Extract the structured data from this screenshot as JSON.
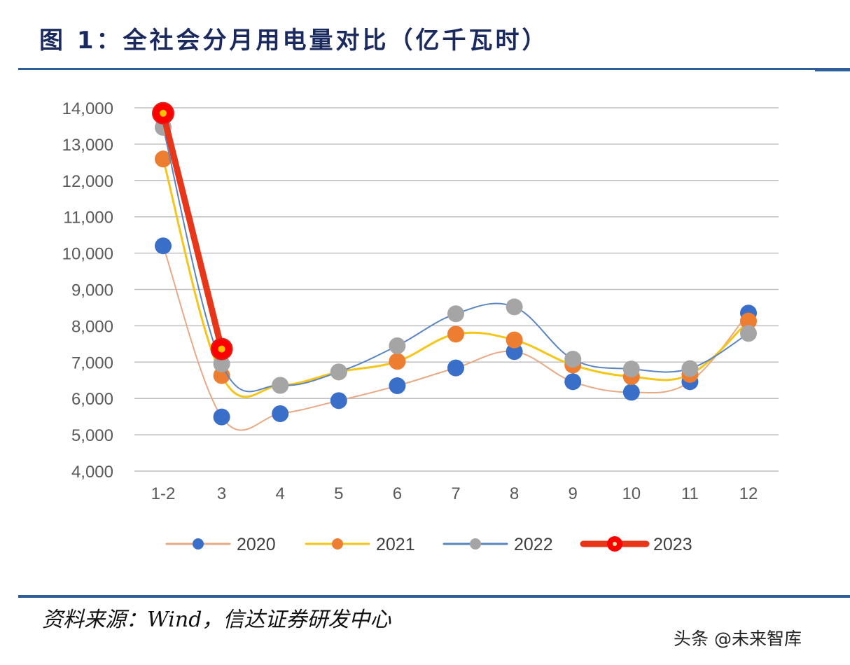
{
  "header": {
    "title": "图 1：全社会分月用电量对比（亿千瓦时）"
  },
  "footer": {
    "source": "资料来源：Wind，信达证券研发中心",
    "watermark": "头条 @未来智库"
  },
  "colors": {
    "rule": "#2f5f9a",
    "title": "#1a2a5e",
    "grid": "#bfbfc4",
    "axis_text": "#595959"
  },
  "chart_data": {
    "type": "line",
    "title": "全社会分月用电量对比（亿千瓦时）",
    "xlabel": "",
    "ylabel": "",
    "ylim": [
      4000,
      14000
    ],
    "yticks": [
      "4,000",
      "5,000",
      "6,000",
      "7,000",
      "8,000",
      "9,000",
      "10,000",
      "11,000",
      "12,000",
      "13,000",
      "14,000"
    ],
    "grid": true,
    "legend_position": "bottom",
    "categories": [
      "1-2",
      "3",
      "4",
      "5",
      "6",
      "7",
      "8",
      "9",
      "10",
      "11",
      "12"
    ],
    "series": [
      {
        "name": "2020",
        "line_color": "#e8a985",
        "marker_color": "#3a6fc9",
        "values": [
          10200,
          5490,
          5580,
          5940,
          6350,
          6840,
          7290,
          6460,
          6170,
          6460,
          8350
        ]
      },
      {
        "name": "2021",
        "line_color": "#f5c518",
        "marker_color": "#ed7d31",
        "values": [
          12590,
          6630,
          6360,
          6730,
          7020,
          7770,
          7610,
          6920,
          6600,
          6660,
          8130
        ]
      },
      {
        "name": "2022",
        "line_color": "#5b85c0",
        "marker_color": "#a5a5a5",
        "values": [
          13460,
          6950,
          6360,
          6730,
          7450,
          8330,
          8520,
          7080,
          6810,
          6820,
          7790
        ]
      },
      {
        "name": "2023",
        "line_color": "#e8361b",
        "marker_color": "#ff0000",
        "values": [
          13850,
          7360
        ]
      }
    ]
  }
}
